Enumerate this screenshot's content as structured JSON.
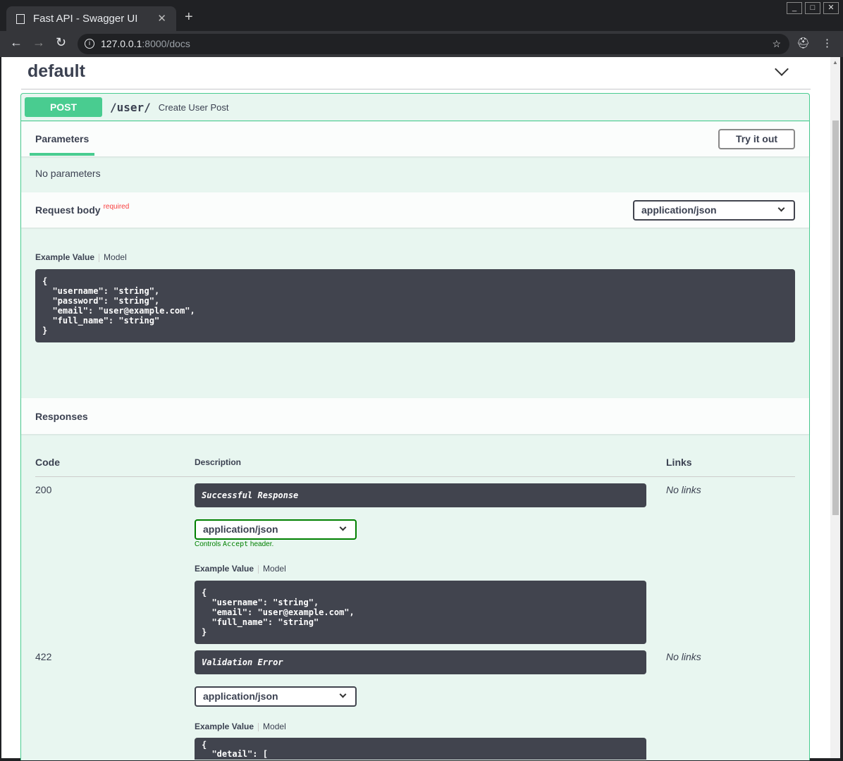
{
  "browser": {
    "tab_title": "Fast API - Swagger UI",
    "url_host": "127.0.0.1",
    "url_rest": ":8000/docs",
    "window_controls": [
      "_",
      "□",
      "✕"
    ]
  },
  "section": {
    "title": "default"
  },
  "operation": {
    "method": "POST",
    "path": "/user/",
    "summary": "Create User Post",
    "method_color": "#49cc90"
  },
  "parameters": {
    "title": "Parameters",
    "try_label": "Try it out",
    "none": "No parameters"
  },
  "request_body": {
    "title": "Request body",
    "required": "required",
    "content_type": "application/json",
    "example_tab": "Example Value",
    "model_tab": "Model",
    "example": "{\n  \"username\": \"string\",\n  \"password\": \"string\",\n  \"email\": \"user@example.com\",\n  \"full_name\": \"string\"\n}"
  },
  "responses": {
    "title": "Responses",
    "headers": {
      "code": "Code",
      "description": "Description",
      "links": "Links"
    },
    "items": [
      {
        "code": "200",
        "description": "Successful Response",
        "content_type": "application/json",
        "controls_pre": "Controls ",
        "controls_code": "Accept",
        "controls_post": " header.",
        "links": "No links",
        "example_tab": "Example Value",
        "model_tab": "Model",
        "example": "{\n  \"username\": \"string\",\n  \"email\": \"user@example.com\",\n  \"full_name\": \"string\"\n}"
      },
      {
        "code": "422",
        "description": "Validation Error",
        "content_type": "application/json",
        "links": "No links",
        "example_tab": "Example Value",
        "model_tab": "Model",
        "example": "{\n  \"detail\": ["
      }
    ]
  }
}
